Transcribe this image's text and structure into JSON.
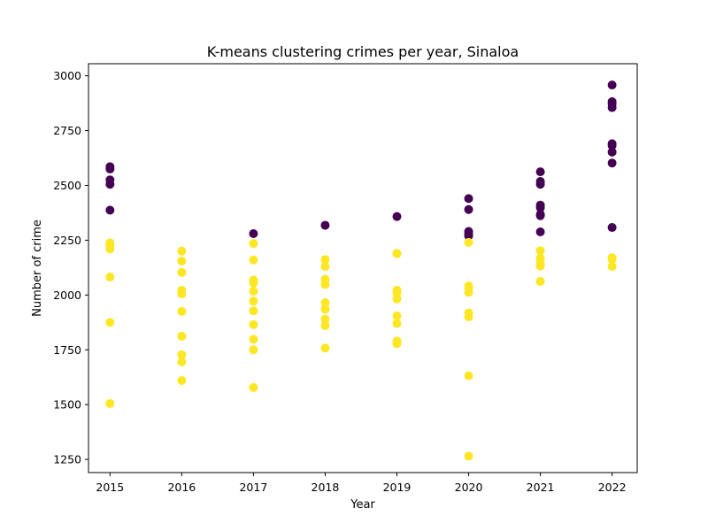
{
  "chart_data": {
    "type": "scatter",
    "title": "K-means clustering crimes per year, Sinaloa",
    "xlabel": "Year",
    "ylabel": "Number of crime",
    "xlim": [
      2014.7,
      2022.35
    ],
    "ylim": [
      1190,
      3055
    ],
    "x_ticks": [
      2015,
      2016,
      2017,
      2018,
      2019,
      2020,
      2021,
      2022
    ],
    "y_ticks": [
      1250,
      1500,
      1750,
      2000,
      2250,
      2500,
      2750,
      3000
    ],
    "grid": false,
    "legend": false,
    "series": [
      {
        "color": "#440154",
        "points": [
          [
            2015,
            2585
          ],
          [
            2015,
            2575
          ],
          [
            2015,
            2525
          ],
          [
            2015,
            2505
          ],
          [
            2015,
            2387
          ],
          [
            2017,
            2280
          ],
          [
            2018,
            2318
          ],
          [
            2019,
            2358
          ],
          [
            2020,
            2440
          ],
          [
            2020,
            2390
          ],
          [
            2020,
            2290
          ],
          [
            2020,
            2280
          ],
          [
            2020,
            2270
          ],
          [
            2021,
            2562
          ],
          [
            2021,
            2518
          ],
          [
            2021,
            2505
          ],
          [
            2021,
            2410
          ],
          [
            2021,
            2398
          ],
          [
            2021,
            2368
          ],
          [
            2021,
            2362
          ],
          [
            2021,
            2288
          ],
          [
            2022,
            2958
          ],
          [
            2022,
            2882
          ],
          [
            2022,
            2872
          ],
          [
            2022,
            2855
          ],
          [
            2022,
            2690
          ],
          [
            2022,
            2682
          ],
          [
            2022,
            2652
          ],
          [
            2022,
            2602
          ],
          [
            2022,
            2308
          ]
        ]
      },
      {
        "color": "#fde725",
        "points": [
          [
            2015,
            2238
          ],
          [
            2015,
            2228
          ],
          [
            2015,
            2210
          ],
          [
            2015,
            2082
          ],
          [
            2015,
            1875
          ],
          [
            2015,
            1505
          ],
          [
            2016,
            2200
          ],
          [
            2016,
            2155
          ],
          [
            2016,
            2103
          ],
          [
            2016,
            2022
          ],
          [
            2016,
            2005
          ],
          [
            2016,
            1925
          ],
          [
            2016,
            1812
          ],
          [
            2016,
            1728
          ],
          [
            2016,
            1695
          ],
          [
            2016,
            1610
          ],
          [
            2017,
            2235
          ],
          [
            2017,
            2160
          ],
          [
            2017,
            2068
          ],
          [
            2017,
            2055
          ],
          [
            2017,
            2017
          ],
          [
            2017,
            1972
          ],
          [
            2017,
            1928
          ],
          [
            2017,
            1865
          ],
          [
            2017,
            1798
          ],
          [
            2017,
            1750
          ],
          [
            2017,
            1578
          ],
          [
            2018,
            2162
          ],
          [
            2018,
            2130
          ],
          [
            2018,
            2072
          ],
          [
            2018,
            2048
          ],
          [
            2018,
            1965
          ],
          [
            2018,
            1935
          ],
          [
            2018,
            1890
          ],
          [
            2018,
            1860
          ],
          [
            2018,
            1758
          ],
          [
            2019,
            2190
          ],
          [
            2019,
            2188
          ],
          [
            2019,
            2022
          ],
          [
            2019,
            2010
          ],
          [
            2019,
            1982
          ],
          [
            2019,
            1905
          ],
          [
            2019,
            1870
          ],
          [
            2019,
            1790
          ],
          [
            2019,
            1778
          ],
          [
            2020,
            2240
          ],
          [
            2020,
            2042
          ],
          [
            2020,
            2030
          ],
          [
            2020,
            2012
          ],
          [
            2020,
            1918
          ],
          [
            2020,
            1900
          ],
          [
            2020,
            1632
          ],
          [
            2020,
            1265
          ],
          [
            2021,
            2202
          ],
          [
            2021,
            2168
          ],
          [
            2021,
            2162
          ],
          [
            2021,
            2140
          ],
          [
            2021,
            2132
          ],
          [
            2021,
            2062
          ],
          [
            2022,
            2170
          ],
          [
            2022,
            2162
          ],
          [
            2022,
            2130
          ]
        ]
      }
    ]
  }
}
